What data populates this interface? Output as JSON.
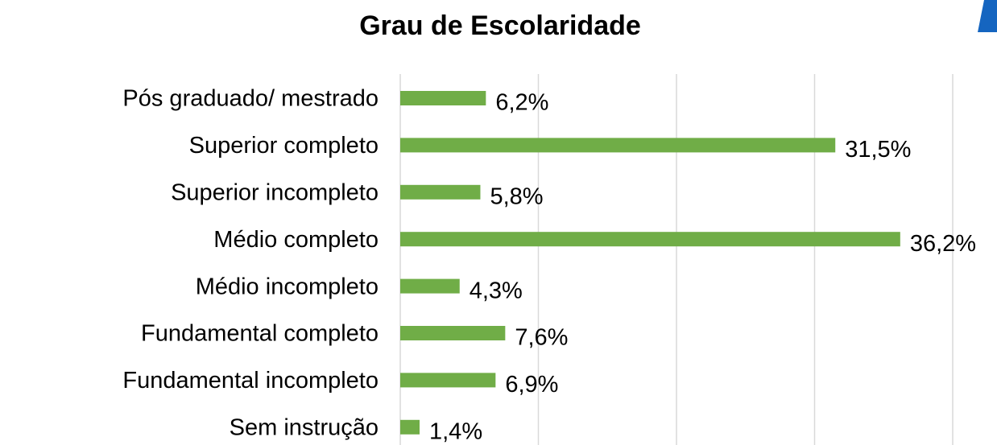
{
  "chart_data": {
    "type": "hbar",
    "title": "Grau de Escolaridade",
    "categories": [
      "Pós graduado/ mestrado",
      "Superior completo",
      "Superior incompleto",
      "Médio completo",
      "Médio incompleto",
      "Fundamental completo",
      "Fundamental incompleto",
      "Sem instrução"
    ],
    "values": [
      6.2,
      31.5,
      5.8,
      36.2,
      4.3,
      7.6,
      6.9,
      1.4
    ],
    "value_labels": [
      "6,2%",
      "31,5%",
      "5,8%",
      "36,2%",
      "4,3%",
      "7,6%",
      "6,9%",
      "1,4%"
    ],
    "color": "#70ad47",
    "xlim": [
      0,
      40
    ],
    "xticks": [
      0,
      10,
      20,
      30,
      40
    ],
    "grid": true
  }
}
